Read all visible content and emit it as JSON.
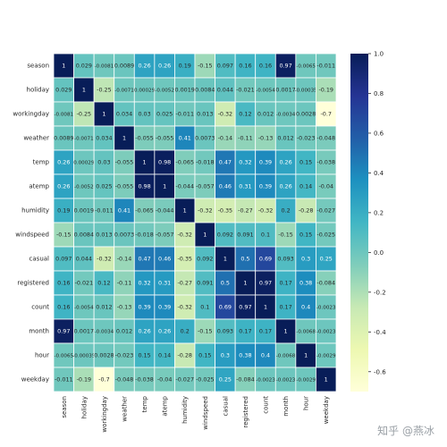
{
  "chart_data": {
    "type": "heatmap",
    "variables": [
      "season",
      "holiday",
      "workingday",
      "weather",
      "temp",
      "atemp",
      "humidity",
      "windspeed",
      "casual",
      "registered",
      "count",
      "month",
      "hour",
      "weekday"
    ],
    "cell_labels": [
      [
        "1",
        "0.029",
        "-0.0081",
        "0.0089",
        "0.26",
        "0.26",
        "0.19",
        "-0.15",
        "0.097",
        "0.16",
        "0.16",
        "0.97",
        "-0.0065",
        "-0.011"
      ],
      [
        "0.029",
        "1",
        "-0.25",
        "-0.0071",
        "0.00029",
        "-0.0052",
        "0.0019",
        "0.0084",
        "0.044",
        "-0.021",
        "-0.0054",
        "0.0017",
        "-0.00035",
        "-0.19"
      ],
      [
        "-0.0081",
        "-0.25",
        "1",
        "0.034",
        "0.03",
        "0.025",
        "-0.011",
        "0.013",
        "-0.32",
        "0.12",
        "0.012",
        "-0.0034",
        "0.0028",
        "-0.7"
      ],
      [
        "0.0089",
        "-0.0071",
        "0.034",
        "1",
        "-0.055",
        "-0.055",
        "0.41",
        "0.0073",
        "-0.14",
        "-0.11",
        "-0.13",
        "0.012",
        "-0.023",
        "-0.048"
      ],
      [
        "0.26",
        "0.00029",
        "0.03",
        "-0.055",
        "1",
        "0.98",
        "-0.065",
        "-0.018",
        "0.47",
        "0.32",
        "0.39",
        "0.26",
        "0.15",
        "-0.038"
      ],
      [
        "0.26",
        "-0.0052",
        "0.025",
        "-0.055",
        "0.98",
        "1",
        "-0.044",
        "-0.057",
        "0.46",
        "0.31",
        "0.39",
        "0.26",
        "0.14",
        "-0.04"
      ],
      [
        "0.19",
        "0.0019",
        "-0.011",
        "0.41",
        "-0.065",
        "-0.044",
        "1",
        "-0.32",
        "-0.35",
        "-0.27",
        "-0.32",
        "0.2",
        "-0.28",
        "-0.027"
      ],
      [
        "-0.15",
        "0.0084",
        "0.013",
        "0.0073",
        "-0.018",
        "-0.057",
        "-0.32",
        "1",
        "0.092",
        "0.091",
        "0.1",
        "-0.15",
        "0.15",
        "-0.025"
      ],
      [
        "0.097",
        "0.044",
        "-0.32",
        "-0.14",
        "0.47",
        "0.46",
        "-0.35",
        "0.092",
        "1",
        "0.5",
        "0.69",
        "0.093",
        "0.3",
        "0.25"
      ],
      [
        "0.16",
        "-0.021",
        "0.12",
        "-0.11",
        "0.32",
        "0.31",
        "-0.27",
        "0.091",
        "0.5",
        "1",
        "0.97",
        "0.17",
        "0.38",
        "-0.084"
      ],
      [
        "0.16",
        "-0.0054",
        "0.012",
        "-0.13",
        "0.39",
        "0.39",
        "-0.32",
        "0.1",
        "0.69",
        "0.97",
        "1",
        "0.17",
        "0.4",
        "-0.0023"
      ],
      [
        "0.97",
        "0.0017",
        "-0.0034",
        "0.012",
        "0.26",
        "0.26",
        "0.2",
        "-0.15",
        "0.093",
        "0.17",
        "0.17",
        "1",
        "-0.0068",
        "-0.0023"
      ],
      [
        "-0.0065",
        "-0.00035",
        "0.0028",
        "-0.023",
        "0.15",
        "0.14",
        "-0.28",
        "0.15",
        "0.3",
        "0.38",
        "0.4",
        "-0.0068",
        "1",
        "-0.0029"
      ],
      [
        "-0.011",
        "-0.19",
        "-0.7",
        "-0.048",
        "-0.038",
        "-0.04",
        "-0.027",
        "-0.025",
        "0.25",
        "-0.084",
        "-0.0023",
        "-0.0023",
        "-0.0029",
        "1"
      ]
    ],
    "colorbar": {
      "min": -0.7,
      "max": 1.0,
      "ticks": [
        1.0,
        0.8,
        0.6,
        0.4,
        0.2,
        0.0,
        -0.2,
        -0.4,
        -0.6
      ],
      "tick_labels": [
        "1.0",
        "0.8",
        "0.6",
        "0.4",
        "0.2",
        "0.0",
        "-0.2",
        "-0.4",
        "-0.6"
      ],
      "colormap": "YlGnBu"
    },
    "title": "",
    "xlabel": "",
    "ylabel": ""
  },
  "watermark": "知乎 @燕冰"
}
